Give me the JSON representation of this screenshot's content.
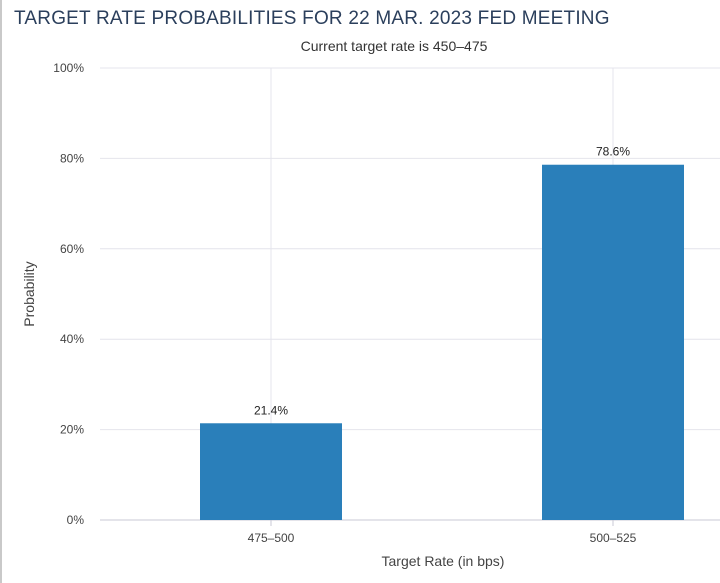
{
  "chart_data": {
    "type": "bar",
    "title": "TARGET RATE PROBABILITIES FOR 22 MAR. 2023 FED MEETING",
    "subtitle": "Current target rate is 450–475",
    "categories": [
      "475–500",
      "500–525"
    ],
    "values": [
      21.4,
      78.6
    ],
    "data_labels": [
      "21.4%",
      "78.6%"
    ],
    "xlabel": "Target Rate (in bps)",
    "ylabel": "Probability",
    "ylim": [
      0,
      100
    ],
    "yticks": [
      0,
      20,
      40,
      60,
      80,
      100
    ],
    "ytick_labels": [
      "0%",
      "20%",
      "40%",
      "60%",
      "80%",
      "100%"
    ],
    "grid": true,
    "legend": "none",
    "colors": {
      "bar": "#2a7fba",
      "grid": "#e4e4ec",
      "axis": "#c9c9d6"
    }
  }
}
